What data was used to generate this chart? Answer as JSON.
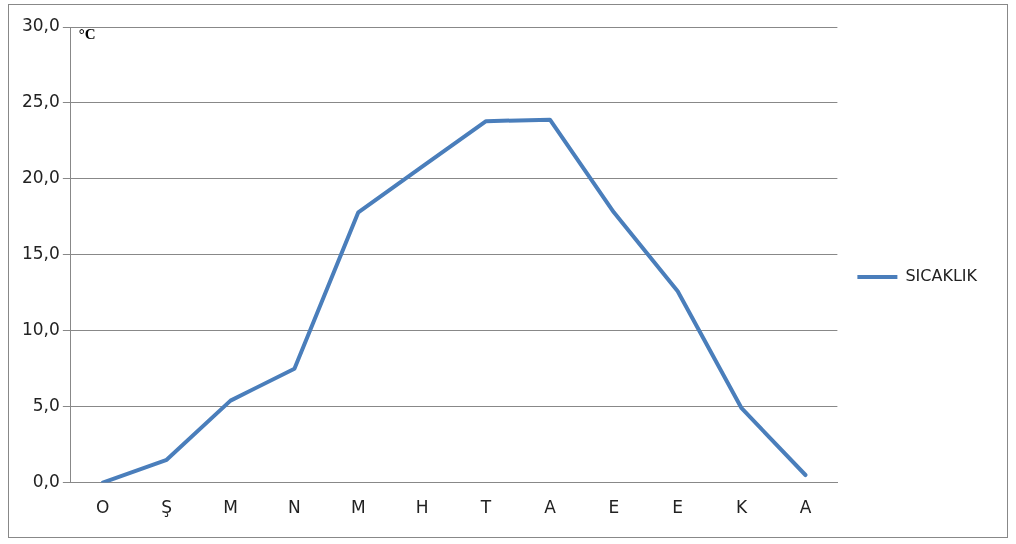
{
  "chart_data": {
    "type": "line",
    "ylabel": "°C",
    "categories": [
      "O",
      "Ş",
      "M",
      "N",
      "M",
      "H",
      "T",
      "A",
      "E",
      "E",
      "K",
      "A"
    ],
    "series": [
      {
        "name": "SICAKLIK",
        "color": "#4a7ebb",
        "values": [
          0.0,
          1.5,
          5.4,
          7.5,
          17.8,
          20.8,
          23.8,
          23.9,
          17.8,
          12.6,
          4.9,
          0.5
        ]
      }
    ],
    "ylim": [
      0,
      30
    ],
    "yticks": [
      {
        "value": 0,
        "label": "0,0"
      },
      {
        "value": 5,
        "label": "5,0"
      },
      {
        "value": 10,
        "label": "10,0"
      },
      {
        "value": 15,
        "label": "15,0"
      },
      {
        "value": 20,
        "label": "20,0"
      },
      {
        "value": 25,
        "label": "25,0"
      },
      {
        "value": 30,
        "label": "30,0"
      }
    ],
    "grid": "y",
    "legend": "right",
    "marker": "none",
    "line_style": "solid"
  }
}
